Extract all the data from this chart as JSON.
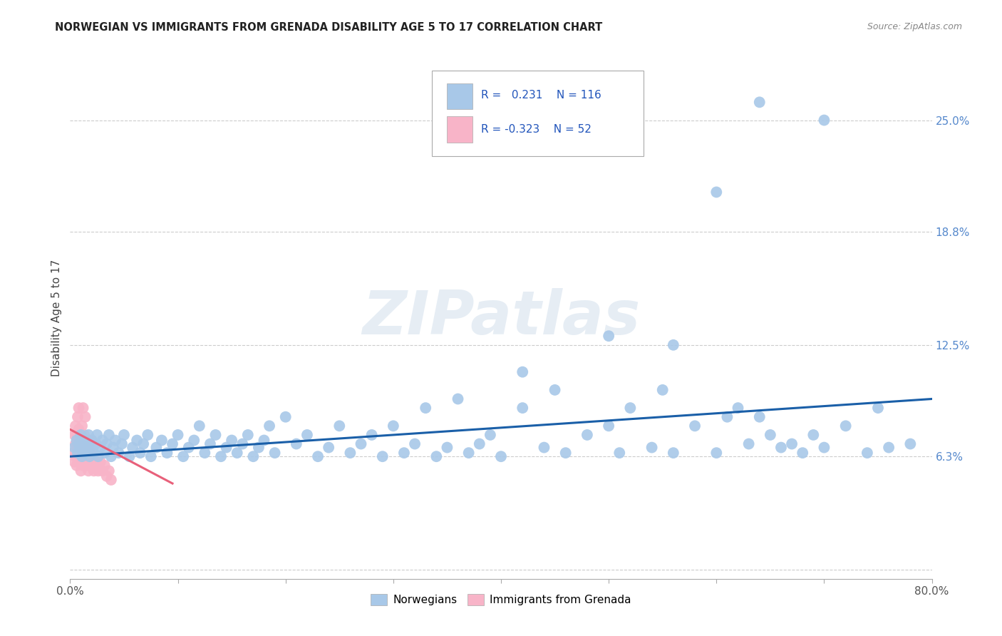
{
  "title": "NORWEGIAN VS IMMIGRANTS FROM GRENADA DISABILITY AGE 5 TO 17 CORRELATION CHART",
  "source": "Source: ZipAtlas.com",
  "ylabel": "Disability Age 5 to 17",
  "xmin": 0.0,
  "xmax": 0.8,
  "ymin": -0.005,
  "ymax": 0.285,
  "ytick_vals": [
    0.0,
    0.063,
    0.125,
    0.188,
    0.25
  ],
  "ytick_labels": [
    "",
    "6.3%",
    "12.5%",
    "18.8%",
    "25.0%"
  ],
  "xtick_vals": [
    0.0,
    0.1,
    0.2,
    0.3,
    0.4,
    0.5,
    0.6,
    0.7,
    0.8
  ],
  "xtick_labels": [
    "0.0%",
    "",
    "",
    "",
    "",
    "",
    "",
    "",
    "80.0%"
  ],
  "norwegians_color": "#a8c8e8",
  "immigrants_color": "#f8b4c8",
  "line_blue_color": "#1a5fa8",
  "line_pink_color": "#e8607a",
  "legend_r1": "R =   0.231",
  "legend_n1": "N = 116",
  "legend_r2": "R = -0.323",
  "legend_n2": "N = 52",
  "watermark_text": "ZIPatlas",
  "nor_x": [
    0.004,
    0.006,
    0.007,
    0.008,
    0.009,
    0.01,
    0.011,
    0.012,
    0.013,
    0.014,
    0.015,
    0.016,
    0.017,
    0.018,
    0.019,
    0.02,
    0.022,
    0.024,
    0.025,
    0.026,
    0.028,
    0.03,
    0.032,
    0.034,
    0.036,
    0.038,
    0.04,
    0.042,
    0.045,
    0.048,
    0.05,
    0.055,
    0.058,
    0.062,
    0.065,
    0.068,
    0.072,
    0.075,
    0.08,
    0.085,
    0.09,
    0.095,
    0.1,
    0.105,
    0.11,
    0.115,
    0.12,
    0.125,
    0.13,
    0.135,
    0.14,
    0.145,
    0.15,
    0.155,
    0.16,
    0.165,
    0.17,
    0.175,
    0.18,
    0.185,
    0.19,
    0.2,
    0.21,
    0.22,
    0.23,
    0.24,
    0.25,
    0.26,
    0.27,
    0.28,
    0.29,
    0.3,
    0.31,
    0.32,
    0.33,
    0.34,
    0.35,
    0.36,
    0.37,
    0.38,
    0.39,
    0.4,
    0.42,
    0.44,
    0.45,
    0.46,
    0.48,
    0.5,
    0.51,
    0.52,
    0.54,
    0.55,
    0.56,
    0.58,
    0.6,
    0.61,
    0.62,
    0.63,
    0.64,
    0.65,
    0.66,
    0.67,
    0.68,
    0.69,
    0.7,
    0.72,
    0.74,
    0.75,
    0.76,
    0.78,
    0.5,
    0.42,
    0.56,
    0.6,
    0.64,
    0.7
  ],
  "nor_y": [
    0.068,
    0.072,
    0.065,
    0.07,
    0.068,
    0.075,
    0.063,
    0.07,
    0.072,
    0.065,
    0.068,
    0.07,
    0.075,
    0.063,
    0.068,
    0.072,
    0.065,
    0.07,
    0.075,
    0.063,
    0.068,
    0.072,
    0.065,
    0.07,
    0.075,
    0.063,
    0.068,
    0.072,
    0.065,
    0.07,
    0.075,
    0.063,
    0.068,
    0.072,
    0.065,
    0.07,
    0.075,
    0.063,
    0.068,
    0.072,
    0.065,
    0.07,
    0.075,
    0.063,
    0.068,
    0.072,
    0.08,
    0.065,
    0.07,
    0.075,
    0.063,
    0.068,
    0.072,
    0.065,
    0.07,
    0.075,
    0.063,
    0.068,
    0.072,
    0.08,
    0.065,
    0.085,
    0.07,
    0.075,
    0.063,
    0.068,
    0.08,
    0.065,
    0.07,
    0.075,
    0.063,
    0.08,
    0.065,
    0.07,
    0.09,
    0.063,
    0.068,
    0.095,
    0.065,
    0.07,
    0.075,
    0.063,
    0.09,
    0.068,
    0.1,
    0.065,
    0.075,
    0.08,
    0.065,
    0.09,
    0.068,
    0.1,
    0.065,
    0.08,
    0.065,
    0.085,
    0.09,
    0.07,
    0.085,
    0.075,
    0.068,
    0.07,
    0.065,
    0.075,
    0.068,
    0.08,
    0.065,
    0.09,
    0.068,
    0.07,
    0.13,
    0.11,
    0.125,
    0.21,
    0.26,
    0.25
  ],
  "imm_x": [
    0.003,
    0.004,
    0.004,
    0.005,
    0.005,
    0.005,
    0.006,
    0.006,
    0.006,
    0.007,
    0.007,
    0.007,
    0.008,
    0.008,
    0.008,
    0.008,
    0.009,
    0.009,
    0.009,
    0.01,
    0.01,
    0.01,
    0.011,
    0.011,
    0.012,
    0.012,
    0.012,
    0.013,
    0.013,
    0.014,
    0.014,
    0.015,
    0.015,
    0.016,
    0.016,
    0.017,
    0.018,
    0.018,
    0.019,
    0.02,
    0.02,
    0.022,
    0.022,
    0.024,
    0.025,
    0.026,
    0.028,
    0.03,
    0.032,
    0.034,
    0.036,
    0.038
  ],
  "imm_y": [
    0.065,
    0.06,
    0.075,
    0.07,
    0.063,
    0.08,
    0.068,
    0.075,
    0.058,
    0.065,
    0.072,
    0.085,
    0.063,
    0.07,
    0.078,
    0.09,
    0.065,
    0.072,
    0.06,
    0.068,
    0.075,
    0.055,
    0.063,
    0.08,
    0.058,
    0.07,
    0.09,
    0.065,
    0.075,
    0.06,
    0.085,
    0.063,
    0.072,
    0.058,
    0.068,
    0.055,
    0.07,
    0.06,
    0.065,
    0.058,
    0.072,
    0.055,
    0.063,
    0.06,
    0.058,
    0.055,
    0.06,
    0.055,
    0.058,
    0.052,
    0.055,
    0.05
  ],
  "nor_line_x": [
    0.0,
    0.8
  ],
  "nor_line_y": [
    0.063,
    0.095
  ],
  "imm_line_x": [
    0.0,
    0.095
  ],
  "imm_line_y": [
    0.078,
    0.048
  ]
}
